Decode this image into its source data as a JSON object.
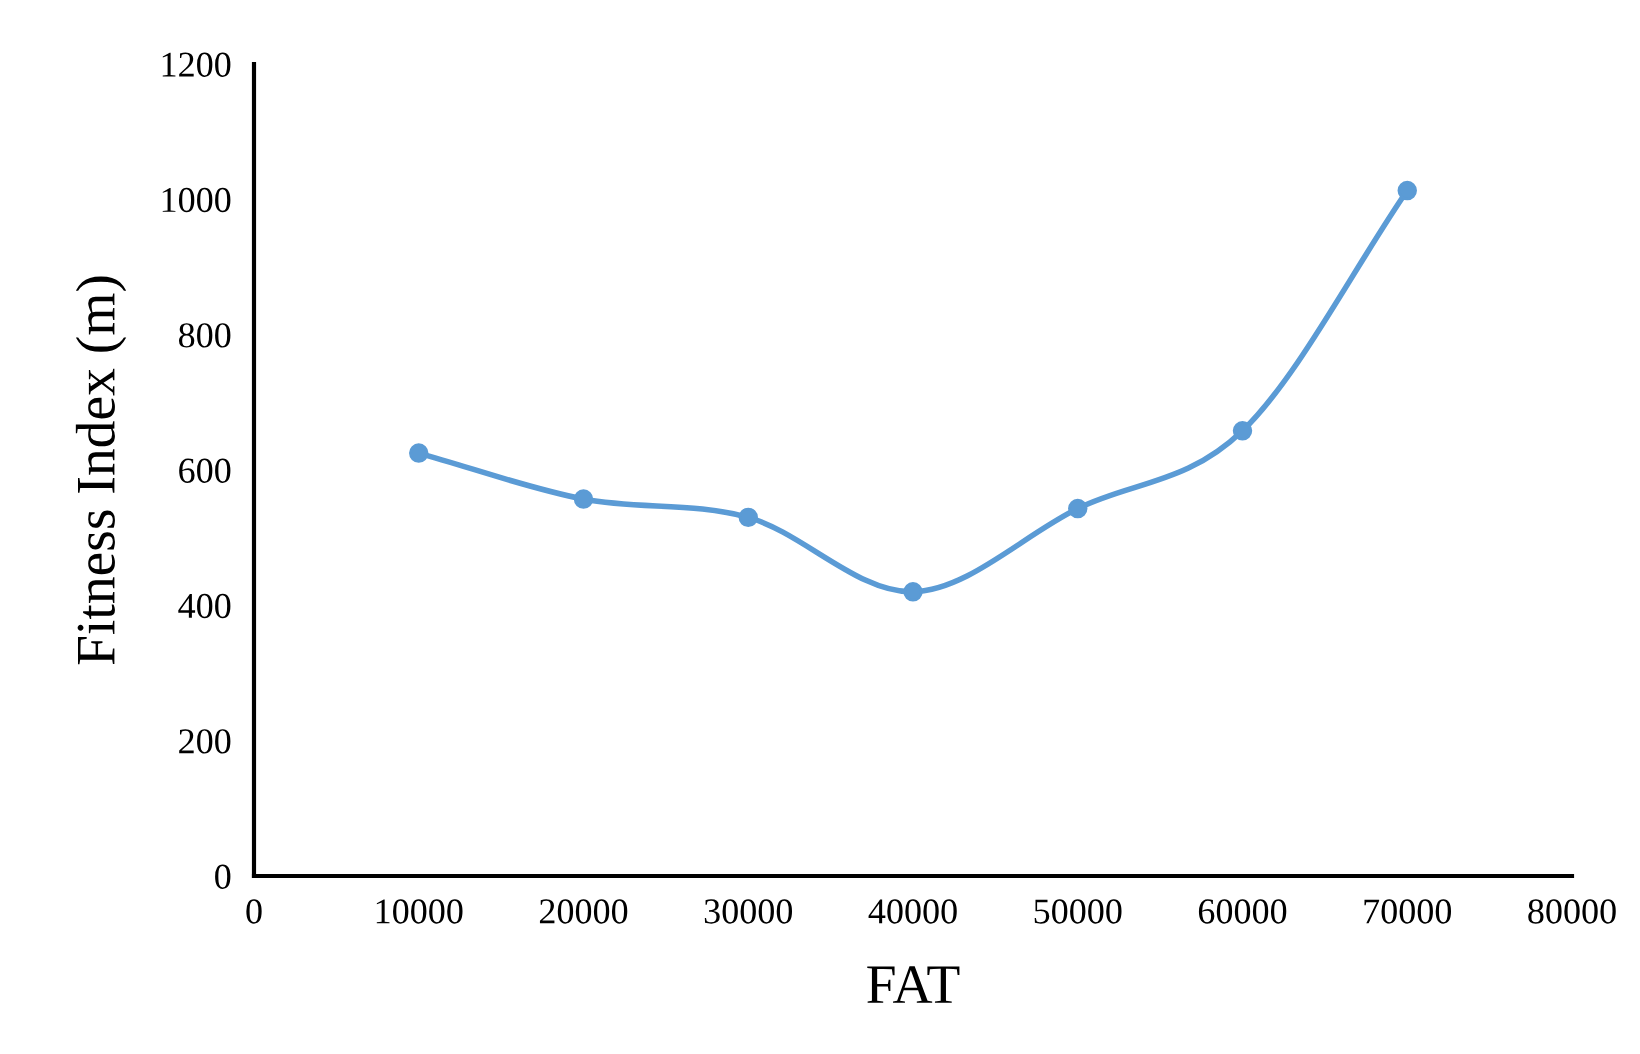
{
  "chart_data": {
    "type": "line",
    "xlabel": "FAT",
    "ylabel": "Fitness Index (m)",
    "series": [
      {
        "color": "#5b9bd5",
        "x": [
          10000,
          20000,
          30000,
          40000,
          50000,
          60000,
          70000
        ],
        "values": [
          625,
          557,
          530,
          420,
          543,
          658,
          1013
        ]
      }
    ],
    "xlim": [
      0,
      80000
    ],
    "xticks": [
      0,
      10000,
      20000,
      30000,
      40000,
      50000,
      60000,
      70000,
      80000
    ],
    "ylim": [
      0,
      1200
    ],
    "yticks": [
      0,
      200,
      400,
      600,
      800,
      1000,
      1200
    ],
    "marker": "circle",
    "line_style": "solid",
    "grid": false
  }
}
